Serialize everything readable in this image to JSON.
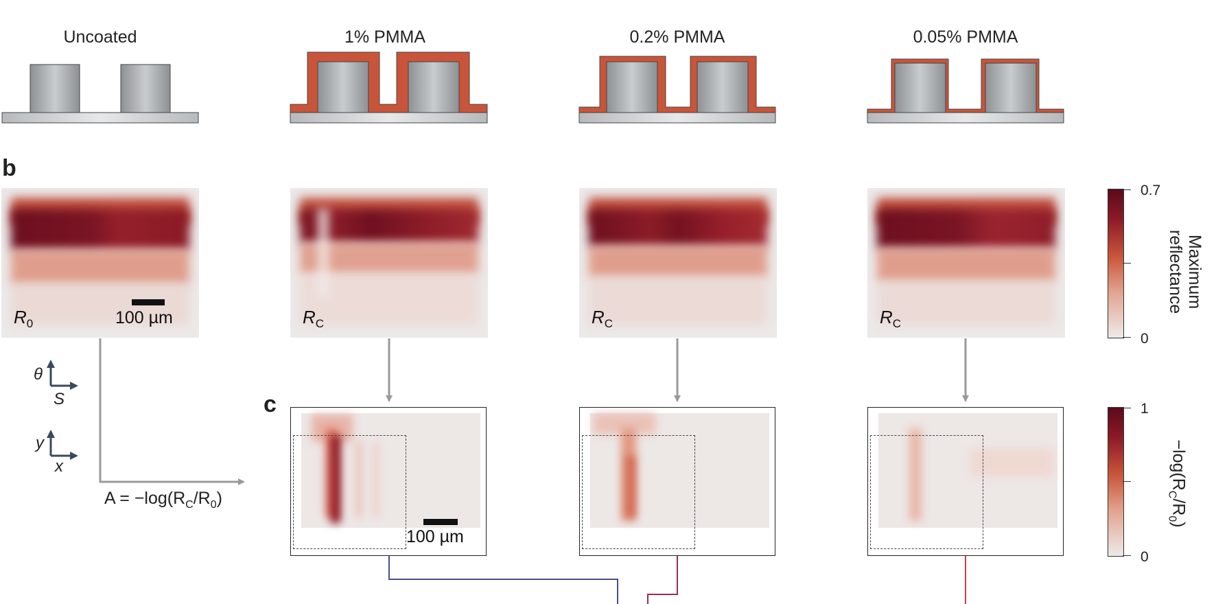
{
  "columns": [
    {
      "title": "Uncoated",
      "map_label": "R",
      "map_sub": "0"
    },
    {
      "title": "1% PMMA",
      "map_label": "R",
      "map_sub": "C"
    },
    {
      "title": "0.2% PMMA",
      "map_label": "R",
      "map_sub": "C"
    },
    {
      "title": "0.05% PMMA",
      "map_label": "R",
      "map_sub": "C"
    }
  ],
  "panels": {
    "b": "b",
    "c": "c"
  },
  "scale_bar_text": "100 µm",
  "axes": {
    "theta": "θ",
    "s": "S",
    "y": "y",
    "x": "x"
  },
  "formula": {
    "pre": "A = −log(R",
    "sub1": "C",
    "mid": "/R",
    "sub2": "0",
    "post": ")"
  },
  "colorbar_reflectance": {
    "max": "0.7",
    "min": "0",
    "title_line1": "Maximum",
    "title_line2": "reflectance"
  },
  "colorbar_absorbance": {
    "max": "1",
    "min": "0",
    "title": "−log(R",
    "sub1": "C",
    "mid": "/R",
    "sub2": "0",
    "post": ")"
  },
  "colors": {
    "coating": "#c8553a",
    "substrate": "#cfd2d4",
    "pillar": "#a9adb0",
    "arrow": "#9a9a9a",
    "line_blue": "#4a4e8c",
    "line_purple": "#9a2a5a",
    "line_red": "#d23a4a",
    "heat_dark": "#6b0f1f"
  }
}
